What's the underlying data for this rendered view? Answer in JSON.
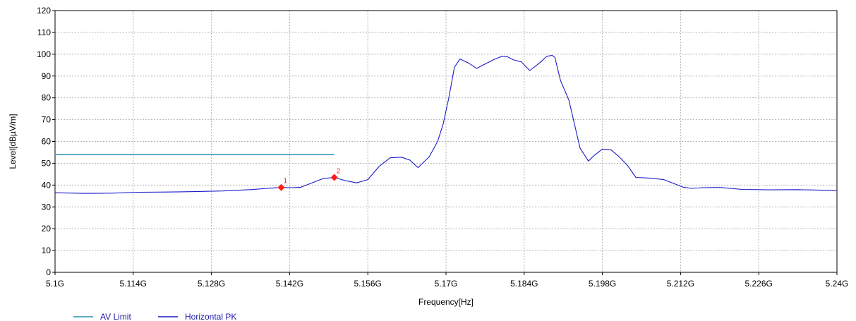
{
  "chart_data": {
    "type": "line",
    "xlabel": "Frequency[Hz]",
    "ylabel": "Level[dBµV/m]",
    "xlim": [
      5.1,
      5.24
    ],
    "ylim": [
      0,
      120
    ],
    "grid": true,
    "legend_position": "bottom-left",
    "x_ticks": [
      5.1,
      5.114,
      5.128,
      5.142,
      5.156,
      5.17,
      5.184,
      5.198,
      5.212,
      5.226,
      5.24
    ],
    "x_tick_labels": [
      "5.1G",
      "5.114G",
      "5.128G",
      "5.142G",
      "5.156G",
      "5.17G",
      "5.184G",
      "5.198G",
      "5.212G",
      "5.226G",
      "5.24G"
    ],
    "y_ticks": [
      0,
      10,
      20,
      30,
      40,
      50,
      60,
      70,
      80,
      90,
      100,
      110,
      120
    ],
    "y_tick_labels": [
      "0",
      "10",
      "20",
      "30",
      "40",
      "50",
      "60",
      "70",
      "80",
      "90",
      "100",
      "110",
      "120"
    ],
    "series": [
      {
        "name": "AV Limit",
        "color": "#2a8fb8",
        "x": [
          5.1,
          5.15
        ],
        "y": [
          54,
          54
        ]
      },
      {
        "name": "Horizontal PK",
        "color": "#1a1acc",
        "x": [
          5.1,
          5.105,
          5.11,
          5.115,
          5.12,
          5.125,
          5.13,
          5.135,
          5.138,
          5.1405,
          5.1425,
          5.144,
          5.146,
          5.148,
          5.15,
          5.152,
          5.154,
          5.156,
          5.158,
          5.16,
          5.162,
          5.1635,
          5.165,
          5.167,
          5.1685,
          5.1695,
          5.1705,
          5.1715,
          5.1725,
          5.174,
          5.1755,
          5.177,
          5.1785,
          5.18,
          5.181,
          5.182,
          5.1835,
          5.185,
          5.187,
          5.188,
          5.189,
          5.1895,
          5.1905,
          5.192,
          5.193,
          5.194,
          5.1955,
          5.1965,
          5.198,
          5.1995,
          5.201,
          5.2025,
          5.204,
          5.2065,
          5.209,
          5.211,
          5.2125,
          5.214,
          5.216,
          5.219,
          5.223,
          5.228,
          5.233,
          5.24
        ],
        "y": [
          36.5,
          36.2,
          36.3,
          36.7,
          36.8,
          37.0,
          37.3,
          37.9,
          38.5,
          38.9,
          38.8,
          39.0,
          41.0,
          43.0,
          43.5,
          42.0,
          41.0,
          42.5,
          48.5,
          52.5,
          52.8,
          51.5,
          48.0,
          53.0,
          60.0,
          68.0,
          80.0,
          94.0,
          97.8,
          96.0,
          93.5,
          95.5,
          97.5,
          99.0,
          98.8,
          97.5,
          96.5,
          92.5,
          96.5,
          99.0,
          99.5,
          98.5,
          88.0,
          79.0,
          68.0,
          57.0,
          51.0,
          53.5,
          56.5,
          56.2,
          53.0,
          49.0,
          43.5,
          43.2,
          42.5,
          40.5,
          39.0,
          38.5,
          38.8,
          38.9,
          38.0,
          37.8,
          37.9,
          37.5
        ]
      }
    ],
    "markers": [
      {
        "label": "1",
        "x": 5.1405,
        "y": 38.9
      },
      {
        "label": "2",
        "x": 5.15,
        "y": 43.5
      }
    ]
  }
}
